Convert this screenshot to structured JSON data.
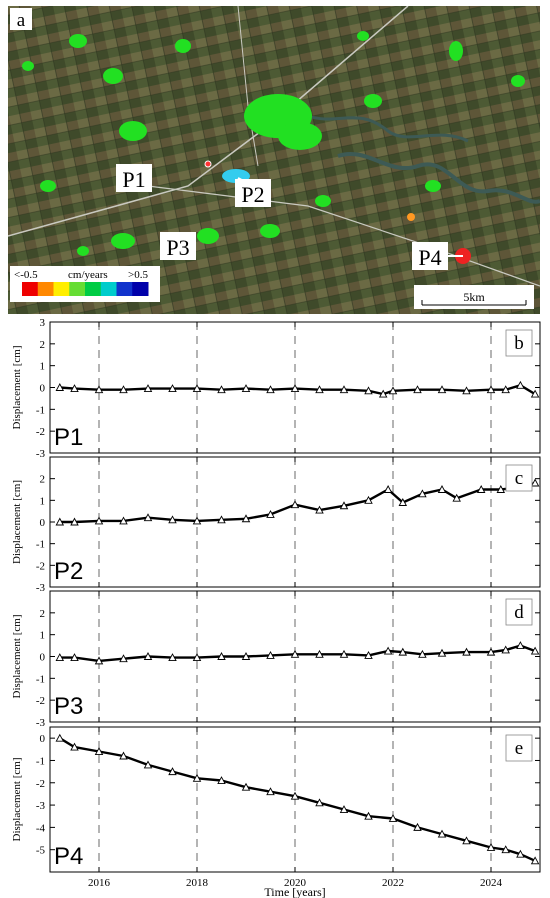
{
  "map": {
    "panel_label": "a",
    "points": [
      {
        "label": "P1",
        "color": "#33dd33"
      },
      {
        "label": "P2",
        "color": "#33ccee"
      },
      {
        "label": "P3",
        "color": "#33dd33"
      },
      {
        "label": "P4",
        "color": "#ee2222"
      }
    ],
    "colorbar": {
      "min_label": "<-0.5",
      "unit_label": "cm/years",
      "max_label": ">0.5",
      "colors": [
        "#ee0000",
        "#ff8800",
        "#ffee00",
        "#66dd33",
        "#00cc44",
        "#00cccc",
        "#1133cc",
        "#0000aa"
      ]
    },
    "scale_label": "5km"
  },
  "chart_data": [
    {
      "type": "scatter",
      "panel_label": "b",
      "point_label": "P1",
      "ylabel": "Displacement [cm]",
      "xlabel": "",
      "xlim": [
        2015,
        2025
      ],
      "ylim": [
        -3,
        3
      ],
      "yticks": [
        -3,
        -2,
        -1,
        0,
        1,
        2,
        3
      ],
      "xticks": [
        2016,
        2018,
        2020,
        2022,
        2024
      ],
      "xtick_labels": [],
      "grid_x": [
        2016,
        2018,
        2020,
        2022,
        2024
      ],
      "x": [
        2015.2,
        2015.5,
        2016.0,
        2016.5,
        2017.0,
        2017.5,
        2018.0,
        2018.5,
        2019.0,
        2019.5,
        2020.0,
        2020.5,
        2021.0,
        2021.5,
        2021.8,
        2022.0,
        2022.5,
        2023.0,
        2023.5,
        2024.0,
        2024.3,
        2024.6,
        2024.9
      ],
      "y": [
        0.0,
        -0.05,
        -0.1,
        -0.1,
        -0.05,
        -0.05,
        -0.05,
        -0.1,
        -0.05,
        -0.1,
        -0.05,
        -0.1,
        -0.1,
        -0.15,
        -0.3,
        -0.15,
        -0.1,
        -0.1,
        -0.15,
        -0.1,
        -0.1,
        0.1,
        -0.3
      ]
    },
    {
      "type": "scatter",
      "panel_label": "c",
      "point_label": "P2",
      "ylabel": "Displacement [cm]",
      "xlabel": "",
      "xlim": [
        2015,
        2025
      ],
      "ylim": [
        -3,
        3
      ],
      "yticks": [
        -3,
        -2,
        -1,
        0,
        1,
        2
      ],
      "xticks": [
        2016,
        2018,
        2020,
        2022,
        2024
      ],
      "xtick_labels": [],
      "grid_x": [
        2016,
        2018,
        2020,
        2022,
        2024
      ],
      "x": [
        2015.2,
        2015.5,
        2016.0,
        2016.5,
        2017.0,
        2017.5,
        2018.0,
        2018.5,
        2019.0,
        2019.5,
        2020.0,
        2020.5,
        2021.0,
        2021.5,
        2021.9,
        2022.2,
        2022.6,
        2023.0,
        2023.3,
        2023.8,
        2024.2,
        2024.6,
        2024.9
      ],
      "y": [
        0.0,
        0.0,
        0.05,
        0.05,
        0.2,
        0.1,
        0.05,
        0.1,
        0.15,
        0.35,
        0.8,
        0.55,
        0.75,
        1.0,
        1.5,
        0.9,
        1.3,
        1.5,
        1.1,
        1.5,
        1.5,
        1.6,
        1.8
      ]
    },
    {
      "type": "scatter",
      "panel_label": "d",
      "point_label": "P3",
      "ylabel": "Displacement [cm]",
      "xlabel": "",
      "xlim": [
        2015,
        2025
      ],
      "ylim": [
        -3,
        3
      ],
      "yticks": [
        -3,
        -2,
        -1,
        0,
        1,
        2
      ],
      "xticks": [
        2016,
        2018,
        2020,
        2022,
        2024
      ],
      "xtick_labels": [],
      "grid_x": [
        2016,
        2018,
        2020,
        2022,
        2024
      ],
      "x": [
        2015.2,
        2015.5,
        2016.0,
        2016.5,
        2017.0,
        2017.5,
        2018.0,
        2018.5,
        2019.0,
        2019.5,
        2020.0,
        2020.5,
        2021.0,
        2021.5,
        2021.9,
        2022.2,
        2022.6,
        2023.0,
        2023.5,
        2024.0,
        2024.3,
        2024.6,
        2024.9
      ],
      "y": [
        -0.05,
        -0.05,
        -0.2,
        -0.1,
        0.0,
        -0.05,
        -0.05,
        0.0,
        0.0,
        0.05,
        0.1,
        0.1,
        0.1,
        0.05,
        0.25,
        0.2,
        0.1,
        0.15,
        0.2,
        0.2,
        0.3,
        0.5,
        0.25
      ]
    },
    {
      "type": "scatter",
      "panel_label": "e",
      "point_label": "P4",
      "ylabel": "Displacement [cm]",
      "xlabel": "Time [years]",
      "xlim": [
        2015,
        2025
      ],
      "ylim": [
        -6,
        0.5
      ],
      "yticks": [
        -5,
        -4,
        -3,
        -2,
        -1,
        0
      ],
      "xticks": [
        2016,
        2018,
        2020,
        2022,
        2024
      ],
      "xtick_labels": [
        "2016",
        "2018",
        "2020",
        "2022",
        "2024"
      ],
      "grid_x": [
        2016,
        2018,
        2020,
        2022,
        2024
      ],
      "x": [
        2015.2,
        2015.5,
        2016.0,
        2016.5,
        2017.0,
        2017.5,
        2018.0,
        2018.5,
        2019.0,
        2019.5,
        2020.0,
        2020.5,
        2021.0,
        2021.5,
        2022.0,
        2022.5,
        2023.0,
        2023.5,
        2024.0,
        2024.3,
        2024.6,
        2024.9
      ],
      "y": [
        0.0,
        -0.4,
        -0.6,
        -0.8,
        -1.2,
        -1.5,
        -1.8,
        -1.9,
        -2.2,
        -2.4,
        -2.6,
        -2.9,
        -3.2,
        -3.5,
        -3.6,
        -4.0,
        -4.3,
        -4.6,
        -4.9,
        -5.0,
        -5.2,
        -5.5
      ]
    }
  ]
}
